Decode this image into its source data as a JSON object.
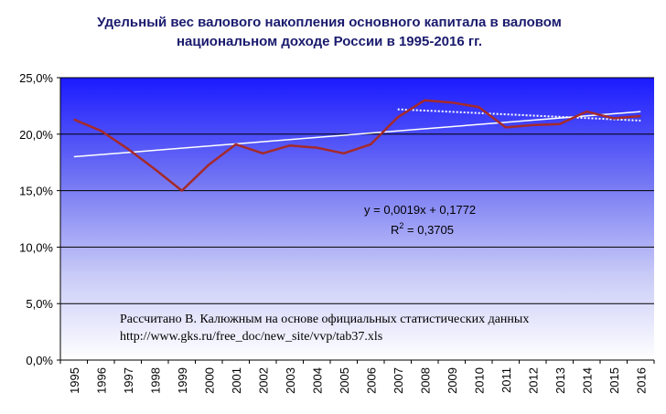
{
  "chart_data": {
    "type": "line",
    "title_line1": "Удельный вес валового накопления основного капитала в валовом",
    "title_line2": "национальном доходе России в 1995-2016 гг.",
    "xlabel": "",
    "ylabel": "",
    "categories": [
      "1995",
      "1996",
      "1997",
      "1998",
      "1999",
      "2000",
      "2001",
      "2002",
      "2003",
      "2004",
      "2005",
      "2006",
      "2007",
      "2008",
      "2009",
      "2010",
      "2011",
      "2012",
      "2013",
      "2014",
      "2015",
      "2016"
    ],
    "yticks": [
      "0,0%",
      "5,0%",
      "10,0%",
      "15,0%",
      "20,0%",
      "25,0%"
    ],
    "ylim": [
      0,
      25
    ],
    "grid": true,
    "series": [
      {
        "values": [
          21.3,
          20.3,
          18.7,
          16.9,
          15.0,
          17.3,
          19.1,
          18.3,
          19.0,
          18.8,
          18.3,
          19.1,
          21.5,
          23.0,
          22.8,
          22.4,
          20.6,
          20.8,
          20.9,
          22.0,
          21.4,
          21.6
        ],
        "color": "#a52a2a"
      }
    ],
    "trendlines": [
      {
        "from_index": 0,
        "to_index": 21,
        "start": 18.0,
        "end": 22.0,
        "style": "solid",
        "color": "#ffffff"
      },
      {
        "from_index": 12,
        "to_index": 21,
        "start": 22.2,
        "end": 21.2,
        "style": "dotted",
        "color": "#ffffff"
      }
    ],
    "equation": "y = 0,0019x + 0,1772",
    "r2_prefix": "R",
    "r2_sup": "2",
    "r2_value": " = 0,3705",
    "source_line1": "Рассчитано В. Калюжным на основе официальных статистических данных",
    "source_line2": "http://www.gks.ru/free_doc/new_site/vvp/tab37.xls"
  }
}
